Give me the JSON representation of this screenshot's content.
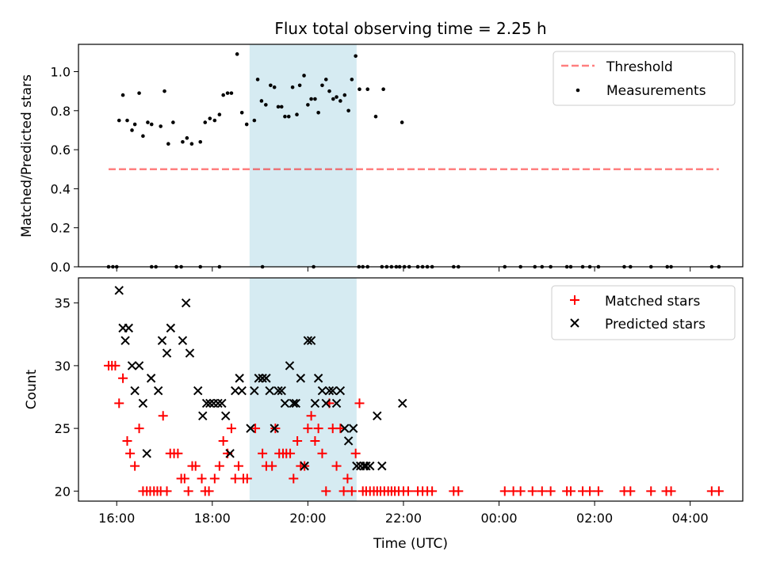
{
  "chart_data": [
    {
      "type": "scatter",
      "title": "Flux total observing time = 2.25 h",
      "xlabel": "",
      "ylabel": "Matched/Predicted stars",
      "ylim": [
        0,
        1.14
      ],
      "y_ticks": [
        "0.0",
        "0.2",
        "0.4",
        "0.6",
        "0.8",
        "1.0"
      ],
      "x_unit": "hours since 00:00 of first day",
      "xlim": [
        15.2,
        29.1
      ],
      "highlight_span": [
        18.78,
        21.02
      ],
      "legend": {
        "placement": "top-right",
        "entries": [
          "Threshold",
          "Measurements"
        ]
      },
      "threshold": {
        "name": "Threshold",
        "y": 0.5,
        "x": [
          15.83,
          28.6
        ]
      },
      "series": [
        {
          "name": "Measurements",
          "x": [
            16.05,
            16.13,
            16.22,
            16.32,
            16.38,
            16.47,
            16.55,
            16.65,
            16.73,
            16.92,
            17.0,
            17.08,
            17.18,
            17.38,
            17.47,
            17.57,
            17.75,
            17.85,
            17.95,
            18.05,
            18.15,
            18.23,
            18.32,
            18.4,
            18.52,
            18.62,
            18.72,
            18.88,
            18.95,
            19.03,
            19.12,
            19.22,
            19.3,
            19.38,
            19.45,
            19.52,
            19.6,
            19.68,
            19.77,
            19.83,
            19.92,
            20.0,
            20.07,
            20.15,
            20.22,
            20.3,
            20.38,
            20.45,
            20.53,
            20.6,
            20.68,
            20.77,
            20.85,
            20.92,
            21.0,
            21.08,
            21.25,
            21.42,
            21.58,
            21.97
          ],
          "y": [
            0.75,
            0.88,
            0.75,
            0.7,
            0.73,
            0.89,
            0.67,
            0.74,
            0.73,
            0.72,
            0.9,
            0.63,
            0.74,
            0.64,
            0.66,
            0.63,
            0.64,
            0.74,
            0.76,
            0.75,
            0.78,
            0.88,
            0.89,
            0.89,
            1.09,
            0.79,
            0.73,
            0.75,
            0.96,
            0.85,
            0.83,
            0.93,
            0.92,
            0.82,
            0.82,
            0.77,
            0.77,
            0.92,
            0.78,
            0.93,
            0.98,
            0.83,
            0.86,
            0.86,
            0.79,
            0.93,
            0.96,
            0.9,
            0.86,
            0.87,
            0.85,
            0.88,
            0.8,
            0.96,
            1.08,
            0.91,
            0.91,
            0.77,
            0.91,
            0.74
          ]
        },
        {
          "name": "Measurements",
          "x": [
            15.83,
            15.92,
            16.0,
            16.73,
            16.82,
            17.25,
            17.35,
            17.75,
            18.15,
            19.05,
            20.12,
            21.07,
            21.15,
            21.25,
            21.55,
            21.65,
            21.75,
            21.85,
            21.92,
            22.02,
            22.12,
            22.3,
            22.4,
            22.5,
            22.6,
            23.05,
            23.15,
            24.12,
            24.45,
            24.75,
            24.9,
            25.08,
            25.42,
            25.5,
            25.75,
            25.9,
            26.08,
            26.62,
            26.75,
            27.18,
            27.52,
            27.6,
            28.45,
            28.6
          ],
          "y": [
            0,
            0,
            0,
            0,
            0,
            0,
            0,
            0,
            0,
            0,
            0,
            0,
            0,
            0,
            0,
            0,
            0,
            0,
            0,
            0,
            0,
            0,
            0,
            0,
            0,
            0,
            0,
            0,
            0,
            0,
            0,
            0,
            0,
            0,
            0,
            0,
            0,
            0,
            0,
            0,
            0,
            0,
            0,
            0
          ]
        }
      ]
    },
    {
      "type": "scatter",
      "title": "",
      "xlabel": "Time (UTC)",
      "ylabel": "Count",
      "ylim": [
        19.2,
        37.0
      ],
      "y_ticks": [
        "20",
        "25",
        "30",
        "35"
      ],
      "x_unit": "hours since 00:00 of first day",
      "xlim": [
        15.2,
        29.1
      ],
      "x_ticks": [
        {
          "x": 16,
          "label": "16:00"
        },
        {
          "x": 18,
          "label": "18:00"
        },
        {
          "x": 20,
          "label": "20:00"
        },
        {
          "x": 22,
          "label": "22:00"
        },
        {
          "x": 24,
          "label": "00:00"
        },
        {
          "x": 26,
          "label": "02:00"
        },
        {
          "x": 28,
          "label": "04:00"
        }
      ],
      "highlight_span": [
        18.78,
        21.02
      ],
      "legend": {
        "placement": "top-right",
        "entries": [
          "Matched stars",
          "Predicted stars"
        ]
      },
      "series": [
        {
          "name": "Matched stars",
          "x": [
            15.83,
            15.9,
            15.97,
            16.05,
            16.13,
            16.22,
            16.28,
            16.38,
            16.47,
            16.55,
            16.63,
            16.7,
            16.78,
            16.85,
            16.92,
            16.97,
            17.05,
            17.12,
            17.2,
            17.28,
            17.35,
            17.42,
            17.5,
            17.58,
            17.65,
            17.78,
            17.85,
            17.93,
            18.05,
            18.15,
            18.23,
            18.32,
            18.4,
            18.48,
            18.55,
            18.65,
            18.73,
            18.9,
            19.05,
            19.13,
            19.25,
            19.32,
            19.4,
            19.48,
            19.55,
            19.63,
            19.7,
            19.78,
            19.85,
            19.93,
            20.0,
            20.07,
            20.15,
            20.22,
            20.3,
            20.38,
            20.45,
            20.52,
            20.6,
            20.68,
            20.75,
            20.83,
            20.92,
            21.0,
            21.08,
            21.15,
            21.22,
            21.3,
            21.38,
            21.45,
            21.52,
            21.6,
            21.68,
            21.75,
            21.82,
            21.9,
            22.0,
            22.1,
            22.3,
            22.4,
            22.5,
            22.6,
            23.05,
            23.15,
            24.12,
            24.3,
            24.45,
            24.7,
            24.9,
            25.08,
            25.42,
            25.5,
            25.75,
            25.9,
            26.08,
            26.62,
            26.75,
            27.18,
            27.5,
            27.6,
            28.45,
            28.6
          ],
          "y": [
            30,
            30,
            30,
            27,
            29,
            24,
            23,
            22,
            25,
            20,
            20,
            20,
            20,
            20,
            20,
            26,
            20,
            23,
            23,
            23,
            21,
            21,
            20,
            22,
            22,
            21,
            20,
            20,
            21,
            22,
            24,
            23,
            25,
            21,
            22,
            21,
            21,
            25,
            23,
            22,
            22,
            25,
            23,
            23,
            23,
            23,
            21,
            24,
            22,
            22,
            25,
            26,
            24,
            25,
            23,
            20,
            27,
            25,
            22,
            25,
            20,
            21,
            20,
            23,
            27,
            20,
            20,
            20,
            20,
            20,
            20,
            20,
            20,
            20,
            20,
            20,
            20,
            20,
            20,
            20,
            20,
            20,
            20,
            20,
            20,
            20,
            20,
            20,
            20,
            20,
            20,
            20,
            20,
            20,
            20,
            20,
            20,
            20,
            20,
            20,
            20,
            20
          ]
        },
        {
          "name": "Predicted stars",
          "x": [
            16.05,
            16.13,
            16.18,
            16.25,
            16.32,
            16.38,
            16.47,
            16.55,
            16.63,
            16.72,
            16.87,
            16.95,
            17.05,
            17.13,
            17.38,
            17.45,
            17.53,
            17.7,
            17.8,
            17.88,
            17.95,
            18.03,
            18.12,
            18.2,
            18.28,
            18.37,
            18.48,
            18.57,
            18.62,
            18.8,
            18.88,
            18.97,
            19.05,
            19.13,
            19.2,
            19.3,
            19.38,
            19.45,
            19.52,
            19.62,
            19.7,
            19.75,
            19.85,
            19.93,
            20.0,
            20.07,
            20.15,
            20.22,
            20.3,
            20.38,
            20.45,
            20.52,
            20.6,
            20.68,
            20.77,
            20.85,
            20.95,
            21.02,
            21.1,
            21.18,
            21.22,
            21.3,
            21.45,
            21.55,
            21.98
          ],
          "y": [
            36,
            33,
            32,
            33,
            30,
            28,
            30,
            27,
            23,
            29,
            28,
            32,
            31,
            33,
            32,
            35,
            31,
            28,
            26,
            27,
            27,
            27,
            27,
            27,
            26,
            23,
            28,
            29,
            28,
            25,
            28,
            29,
            29,
            29,
            28,
            25,
            28,
            28,
            27,
            30,
            27,
            27,
            29,
            22,
            32,
            32,
            27,
            29,
            28,
            27,
            28,
            28,
            27,
            28,
            25,
            24,
            25,
            22,
            22,
            22,
            22,
            22,
            26,
            22,
            27
          ]
        }
      ]
    }
  ]
}
